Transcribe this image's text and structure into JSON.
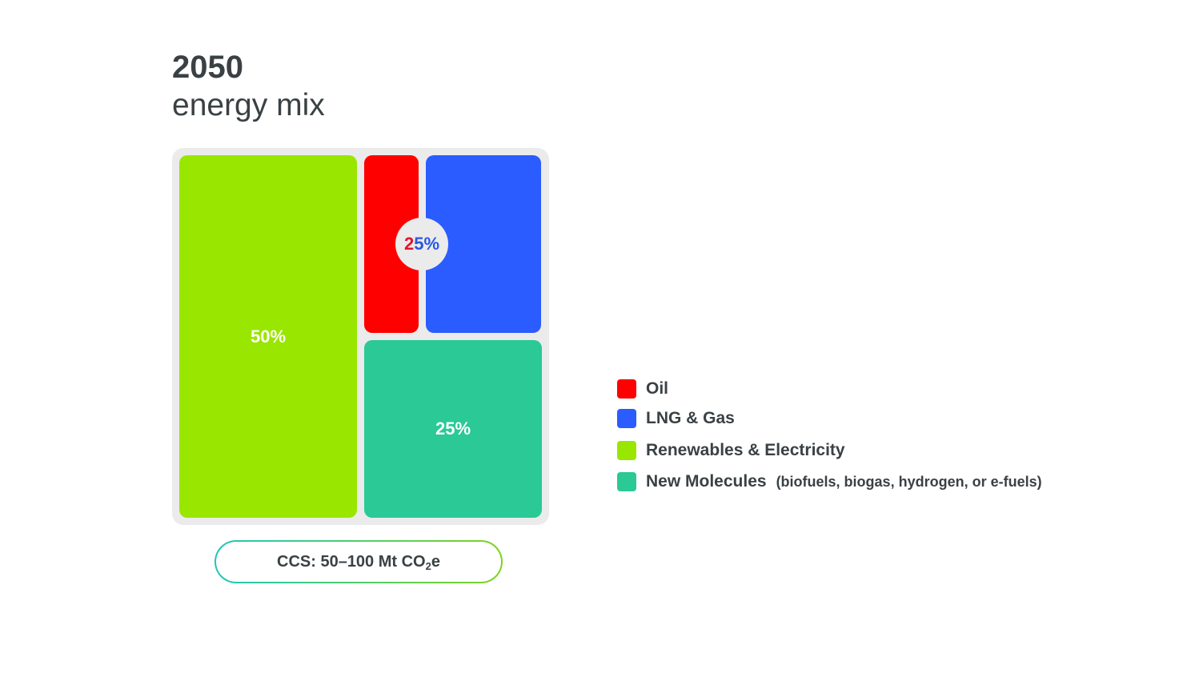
{
  "title": {
    "year": "2050",
    "subtitle": "energy mix"
  },
  "chart_data": {
    "type": "treemap",
    "title": "2050 energy mix",
    "tiles": [
      {
        "name": "Renewables & Electricity",
        "value": 50,
        "label": "50%",
        "color": "#99e600"
      },
      {
        "name": "Oil",
        "value": null,
        "color": "#ff0000"
      },
      {
        "name": "LNG & Gas",
        "value": null,
        "color": "#2a5cff"
      },
      {
        "name": "New Molecules",
        "value": 25,
        "label": "25%",
        "color": "#2ac995"
      }
    ],
    "combined_label": {
      "series": [
        "Oil",
        "LNG & Gas"
      ],
      "value": 25,
      "parts": [
        "2",
        "5",
        "%"
      ],
      "colors": [
        "#e3132a",
        "#2b57e0"
      ]
    },
    "legend_position": "right"
  },
  "legend": [
    {
      "label": "Oil",
      "note": "",
      "color": "#ff0000"
    },
    {
      "label": "LNG & Gas",
      "note": "",
      "color": "#2a5cff"
    },
    {
      "label": "Renewables & Electricity",
      "note": "",
      "color": "#99e600"
    },
    {
      "label": "New Molecules",
      "note": "(biofuels, biogas, hydrogen, or e-fuels)",
      "color": "#2ac995"
    }
  ],
  "ccs": {
    "prefix": "CCS: 50–100 Mt CO",
    "subscript": "2",
    "suffix": "e"
  }
}
